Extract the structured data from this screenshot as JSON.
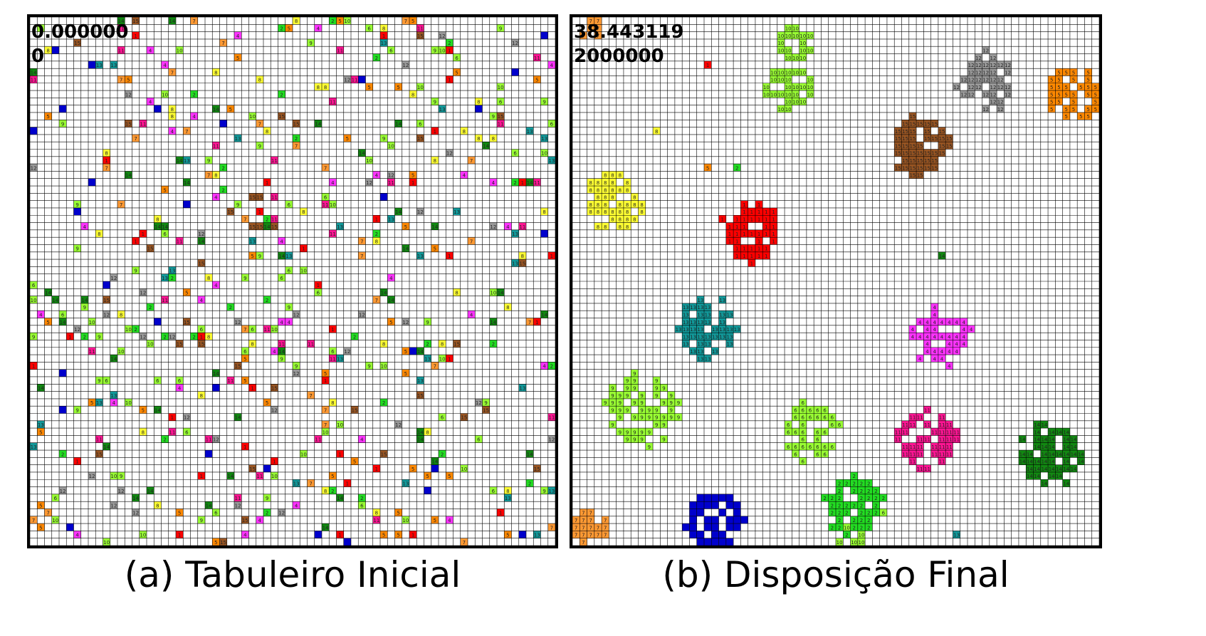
{
  "colors": {
    "grid_line": "#000000",
    "cell_bg": "#ffffff",
    "types": {
      "1": "#ff0000",
      "2": "#22dd22",
      "3": "#0000cc",
      "4": "#ff33ff",
      "5": "#ff8800",
      "6": "#99ff33",
      "7": "#ff9933",
      "8": "#ffff33",
      "9": "#99ff33",
      "10": "#99ff33",
      "11": "#ff1493",
      "12": "#999999",
      "13": "#11999a",
      "14": "#118811",
      "15": "#995522"
    }
  },
  "panels": [
    {
      "id": "a",
      "time_value": "0.000000",
      "iteration": "0",
      "caption": "(a) Tabuleiro Inicial",
      "layout_mode": "scattered"
    },
    {
      "id": "b",
      "time_value": "38.443119",
      "iteration": "2000000",
      "caption": "(b) Disposição Final",
      "layout_mode": "clustered"
    }
  ],
  "grid": {
    "rows": 72,
    "cols": 72
  }
}
